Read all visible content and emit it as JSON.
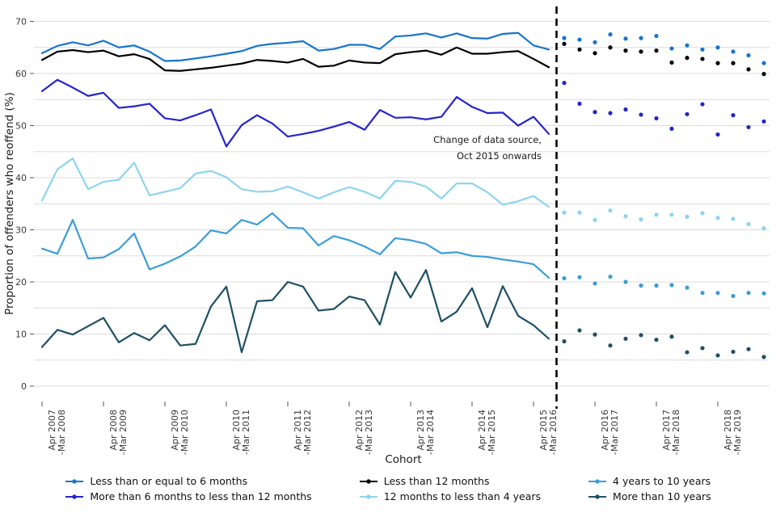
{
  "chart_data": {
    "type": "line",
    "title": "",
    "ylabel": "Proportion of offenders who reoffend (%)",
    "xlabel": "Cohort",
    "ylim": [
      0,
      70
    ],
    "y_ticks": [
      0,
      10,
      20,
      30,
      40,
      50,
      60,
      70
    ],
    "gridline_step": 5,
    "legend_position": "bottom",
    "grid": "horizontal",
    "n_points": 48,
    "line_point_count": 34,
    "dashed_divider_after_index": 33,
    "annotation": [
      "Change of data source,",
      "Oct 2015 onwards"
    ],
    "x_tick_positions": [
      0,
      4,
      8,
      12,
      16,
      20,
      24,
      28,
      32,
      36,
      40,
      44
    ],
    "x_tick_labels": [
      [
        "Apr 2007",
        "-Mar 2008"
      ],
      [
        "Apr 2008",
        "-Mar 2009"
      ],
      [
        "Apr 2009",
        "-Mar 2010"
      ],
      [
        "Apr 2010",
        "-Mar 2011"
      ],
      [
        "Apr 2011",
        "-Mar 2012"
      ],
      [
        "Apr 2012",
        "-Mar 2013"
      ],
      [
        "Apr 2013",
        "-Mar 2014"
      ],
      [
        "Apr 2014",
        "-Mar 2015"
      ],
      [
        "Apr 2015",
        "-Mar 2016"
      ],
      [
        "Apr 2016",
        "-Mar 2017"
      ],
      [
        "Apr 2017",
        "-Mar 2018"
      ],
      [
        "Apr 2018",
        "-Mar 2019"
      ]
    ],
    "series": [
      {
        "id": "le6m",
        "name": "Less than or equal to 6 months",
        "color": "#1874cd",
        "line_values": [
          63.9,
          65.3,
          66.0,
          65.4,
          66.3,
          65.0,
          65.4,
          64.2,
          62.4,
          62.5,
          62.9,
          63.3,
          63.8,
          64.3,
          65.3,
          65.7,
          65.9,
          66.2,
          64.4,
          64.7,
          65.5,
          65.5,
          64.7,
          67.1,
          67.3,
          67.7,
          66.9,
          67.7,
          66.8,
          66.7,
          67.6,
          67.8,
          65.4,
          64.6
        ],
        "dot_values": [
          66.8,
          66.5,
          66.0,
          67.5,
          66.7,
          66.8,
          67.2,
          64.8,
          65.4,
          64.6,
          65.0,
          64.2,
          63.5,
          62.0
        ]
      },
      {
        "id": "m6tol12m",
        "name": "More than 6 months to less than 12 months",
        "color": "#2525cc",
        "line_values": [
          56.6,
          58.8,
          57.3,
          55.7,
          56.3,
          53.4,
          53.7,
          54.2,
          51.4,
          51.0,
          52.0,
          53.1,
          46.0,
          50.1,
          52.0,
          50.4,
          47.9,
          48.4,
          49.0,
          49.8,
          50.7,
          49.2,
          53.0,
          51.5,
          51.6,
          51.2,
          51.7,
          55.5,
          53.6,
          52.4,
          52.5,
          50.0,
          51.7,
          48.4
        ],
        "dot_values": [
          58.2,
          54.2,
          52.6,
          52.4,
          53.1,
          52.1,
          51.4,
          49.4,
          52.2,
          54.1,
          48.3,
          52.0,
          49.7,
          50.8
        ]
      },
      {
        "id": "lt12m",
        "name": "Less than 12 months",
        "color": "#000000",
        "line_values": [
          62.6,
          64.2,
          64.5,
          64.1,
          64.4,
          63.3,
          63.7,
          62.8,
          60.6,
          60.5,
          60.8,
          61.1,
          61.5,
          61.9,
          62.6,
          62.4,
          62.1,
          62.8,
          61.3,
          61.5,
          62.5,
          62.1,
          62.0,
          63.7,
          64.1,
          64.4,
          63.6,
          65.0,
          63.8,
          63.8,
          64.1,
          64.3,
          62.8,
          61.2
        ],
        "dot_values": [
          65.7,
          64.6,
          63.9,
          65.0,
          64.4,
          64.2,
          64.4,
          62.1,
          63.0,
          62.8,
          62.0,
          62.0,
          60.8,
          59.9
        ]
      },
      {
        "id": "12mtol4y",
        "name": "12 months to less than 4 years",
        "color": "#8dd4f0",
        "line_values": [
          35.6,
          41.6,
          43.7,
          37.8,
          39.2,
          39.6,
          42.9,
          36.6,
          37.3,
          38.0,
          40.8,
          41.3,
          40.1,
          37.8,
          37.3,
          37.4,
          38.3,
          37.2,
          36.0,
          37.2,
          38.2,
          37.3,
          36.0,
          39.4,
          39.2,
          38.3,
          36.0,
          38.9,
          38.9,
          37.2,
          34.8,
          35.5,
          36.5,
          34.4
        ],
        "dot_values": [
          33.3,
          33.3,
          31.9,
          33.7,
          32.6,
          32.0,
          32.9,
          32.9,
          32.5,
          33.2,
          32.3,
          32.1,
          31.1,
          30.3
        ]
      },
      {
        "id": "4yto10y",
        "name": "4 years to 10 years",
        "color": "#3c9dd8",
        "line_values": [
          26.4,
          25.4,
          31.9,
          24.5,
          24.7,
          26.3,
          29.3,
          22.4,
          23.5,
          24.9,
          26.8,
          29.9,
          29.3,
          31.9,
          31.0,
          33.2,
          30.4,
          30.3,
          27.0,
          28.8,
          28.0,
          26.8,
          25.3,
          28.4,
          28.0,
          27.3,
          25.5,
          25.7,
          25.0,
          24.8,
          24.3,
          23.9,
          23.4,
          20.8
        ],
        "dot_values": [
          20.7,
          20.9,
          19.7,
          21.0,
          20.0,
          19.3,
          19.3,
          19.4,
          18.9,
          17.9,
          17.9,
          17.3,
          17.9,
          17.8
        ]
      },
      {
        "id": "gt10y",
        "name": "More than 10 years",
        "color": "#1f5064",
        "line_values": [
          7.5,
          10.8,
          9.9,
          11.5,
          13.1,
          8.4,
          10.2,
          8.8,
          11.7,
          7.8,
          8.1,
          15.3,
          19.1,
          6.5,
          16.3,
          16.5,
          20.0,
          19.1,
          14.5,
          14.8,
          17.2,
          16.5,
          11.8,
          21.9,
          17.0,
          22.3,
          12.4,
          14.3,
          18.8,
          11.3,
          19.2,
          13.5,
          11.7,
          9.1
        ],
        "dot_values": [
          8.6,
          10.7,
          9.9,
          7.8,
          9.1,
          9.8,
          8.9,
          9.5,
          6.5,
          7.3,
          5.9,
          6.6,
          7.1,
          5.6
        ]
      }
    ],
    "legend_columns": [
      [
        0,
        1
      ],
      [
        2,
        3
      ],
      [
        4,
        5
      ]
    ],
    "divider_color": "#000000",
    "gridline_color": "#dcdcdc"
  }
}
